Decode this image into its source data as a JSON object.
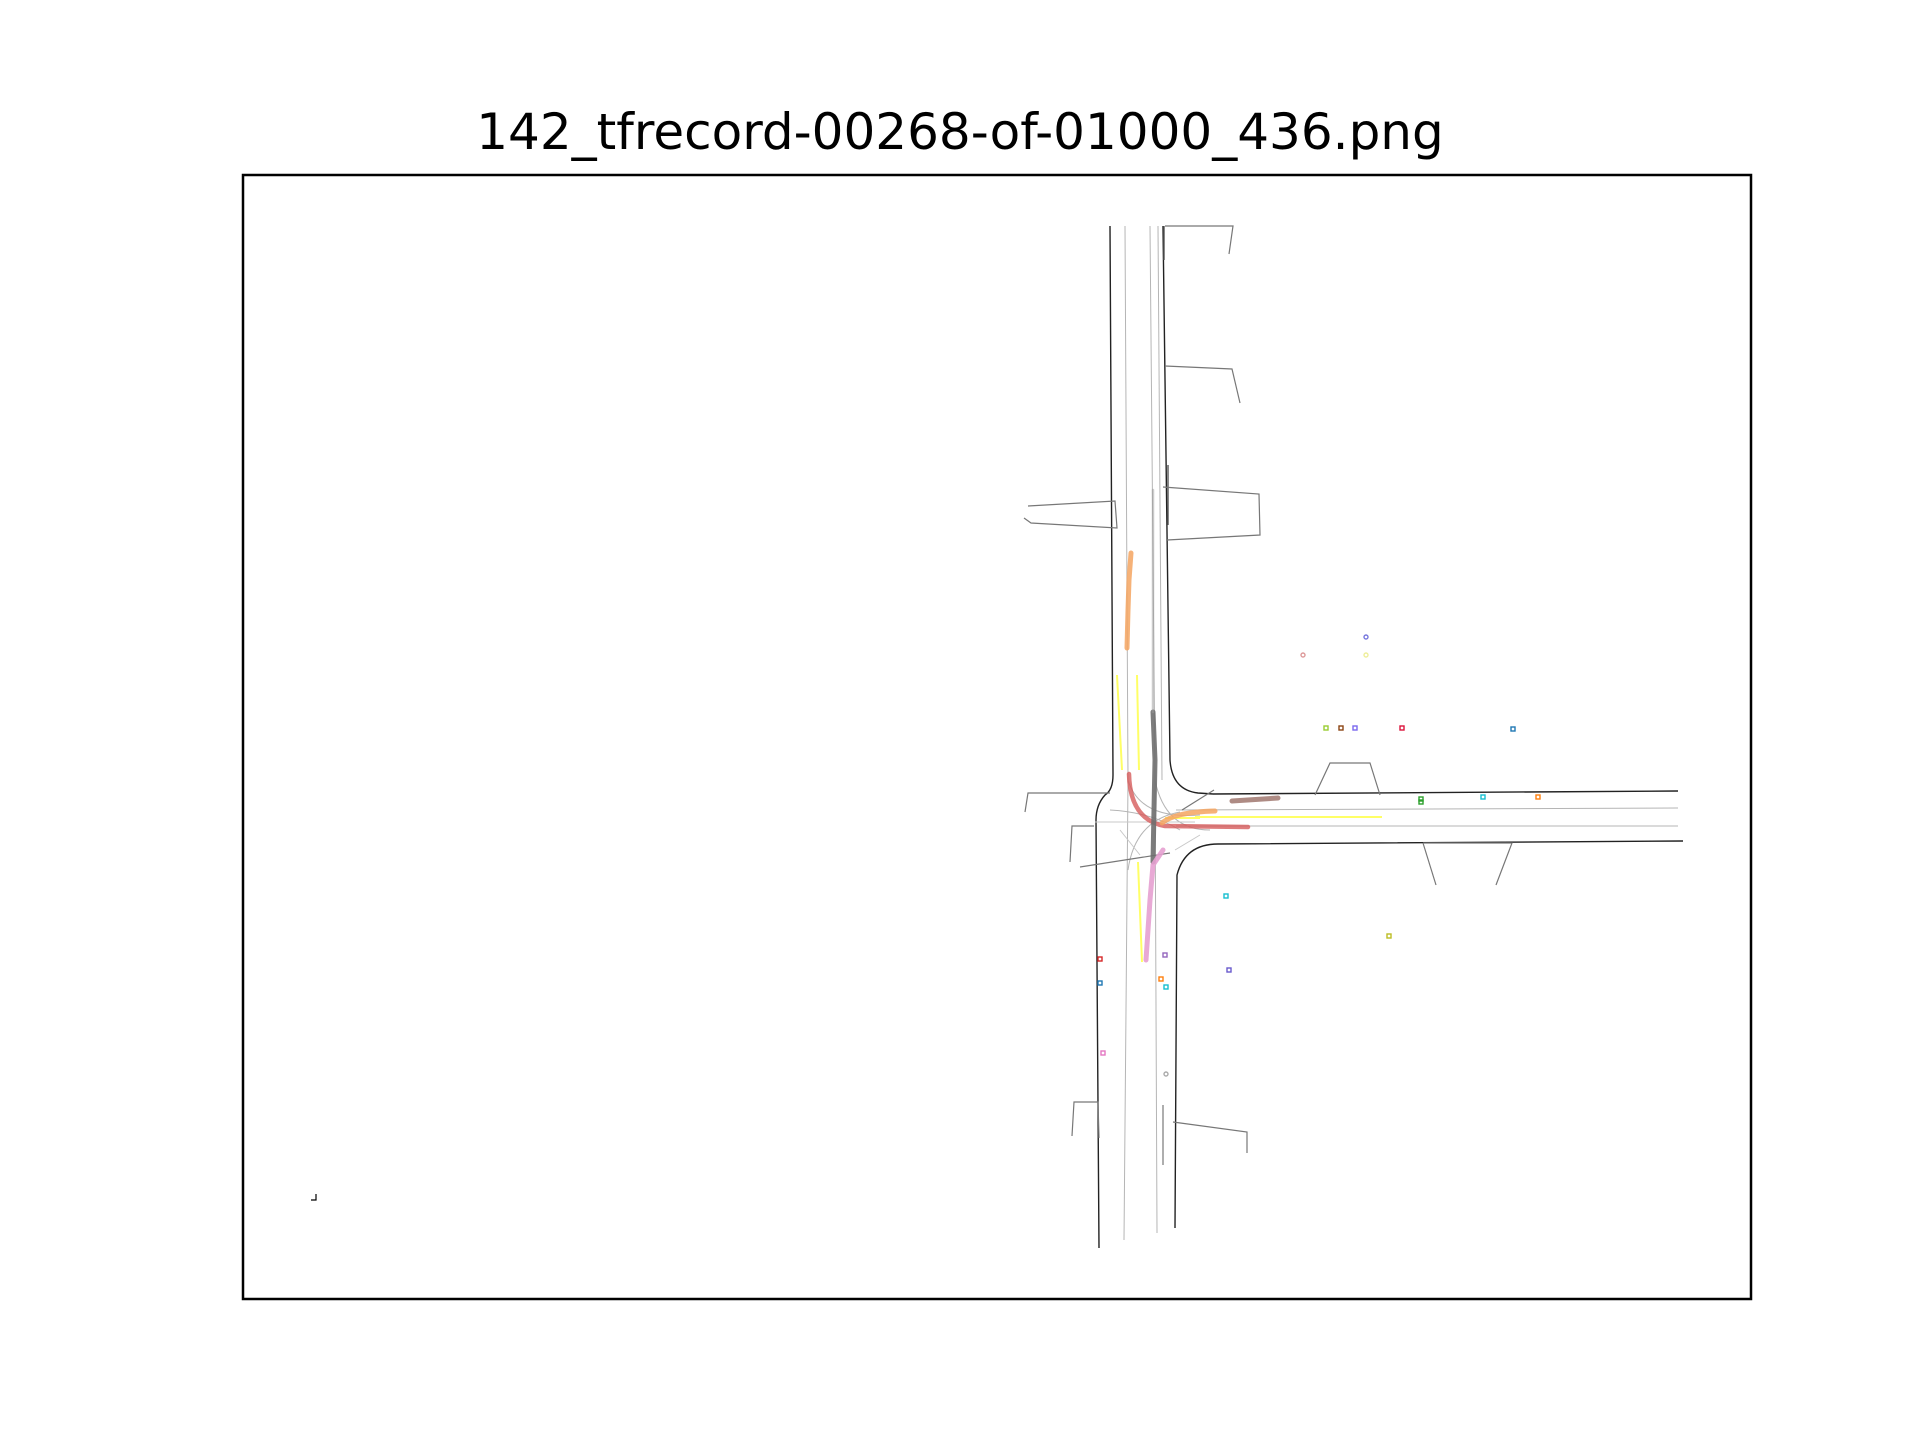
{
  "figure": {
    "title": "142_tfrecord-00268-of-01000_436.png"
  },
  "map": {
    "road_edge_color": "#000000",
    "lane_color": "#9e9e9e",
    "crosswalk_color": "#6e6e6e",
    "stopline_color": "#ffff55"
  },
  "trajectories": [
    {
      "name": "orange-agent-north",
      "color": "#f4a460"
    },
    {
      "name": "red-left-turn-agent",
      "color": "#d65b5b"
    },
    {
      "name": "gray-ego-agent",
      "color": "#707070"
    },
    {
      "name": "pink-agent-south",
      "color": "#e6a0d0"
    },
    {
      "name": "orange-agent-east",
      "color": "#f4a460"
    },
    {
      "name": "brown-agent-east",
      "color": "#8c5a50"
    }
  ]
}
